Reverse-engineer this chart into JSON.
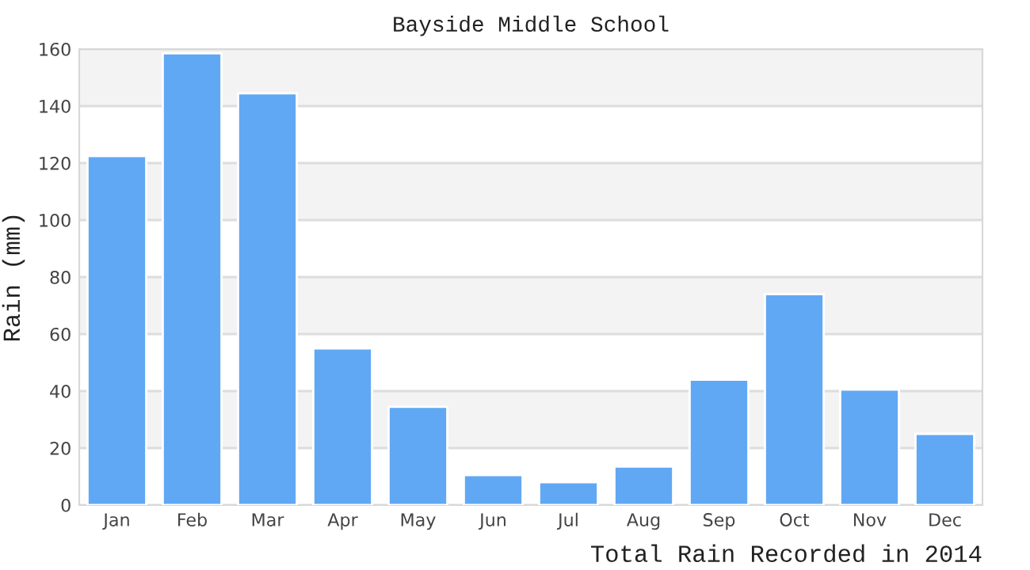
{
  "chart_data": {
    "type": "bar",
    "title": "Bayside Middle School",
    "xlabel": "Total Rain Recorded in 2014",
    "ylabel": "Rain (mm)",
    "categories": [
      "Jan",
      "Feb",
      "Mar",
      "Apr",
      "May",
      "Jun",
      "Jul",
      "Aug",
      "Sep",
      "Oct",
      "Nov",
      "Dec"
    ],
    "values": [
      122.5,
      158.5,
      144.5,
      55,
      34.5,
      10.5,
      8,
      13.5,
      44,
      74,
      40.5,
      25
    ],
    "color": "#60a8f4",
    "ylim": [
      0,
      160
    ],
    "yticks": [
      0,
      20,
      40,
      60,
      80,
      100,
      120,
      140,
      160
    ],
    "grid": "y",
    "bands": [
      {
        "axis": "y",
        "from": 20,
        "to": 40,
        "color": "#f3f3f3"
      },
      {
        "axis": "y",
        "from": 60,
        "to": 80,
        "color": "#f3f3f3"
      },
      {
        "axis": "y",
        "from": 100,
        "to": 120,
        "color": "#f3f3f3"
      },
      {
        "axis": "y",
        "from": 140,
        "to": 160,
        "color": "#f3f3f3"
      }
    ]
  }
}
